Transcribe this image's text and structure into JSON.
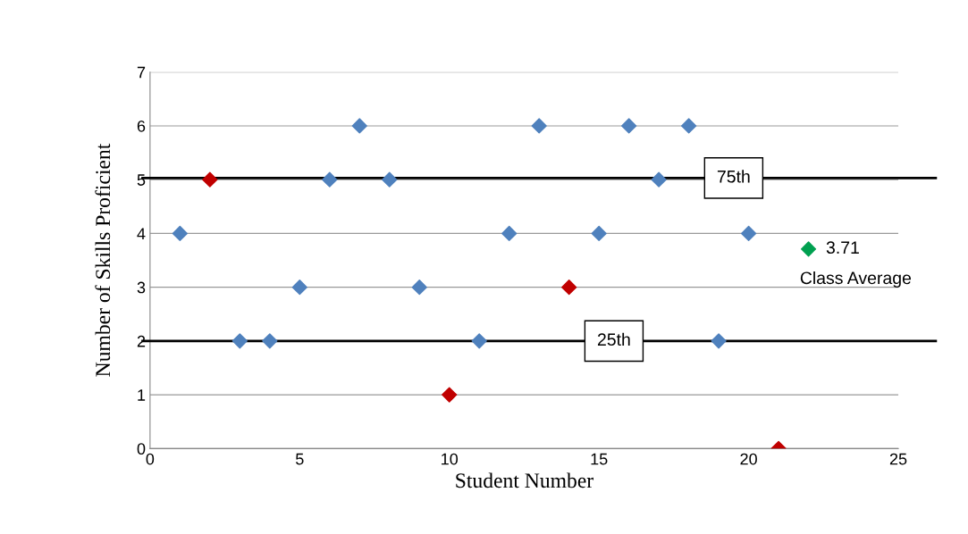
{
  "chart_data": {
    "type": "scatter",
    "xlabel": "Student Number",
    "ylabel": "Number of Skills Proficient",
    "xlim": [
      0,
      25
    ],
    "xticks": [
      0,
      5,
      10,
      15,
      20,
      25
    ],
    "ylim": [
      0,
      7
    ],
    "yticks": [
      0,
      1,
      2,
      3,
      4,
      5,
      6,
      7
    ],
    "grid": "y",
    "marker": "diamond",
    "series": [
      {
        "color": "#4f81bd",
        "x": [
          1,
          3,
          4,
          5,
          6,
          7,
          8,
          9,
          11,
          12,
          13,
          15,
          16,
          17,
          18,
          19,
          20
        ],
        "values": [
          4,
          2,
          2,
          3,
          5,
          6,
          5,
          3,
          2,
          4,
          6,
          4,
          6,
          5,
          6,
          2,
          4
        ]
      },
      {
        "color": "#c00000",
        "x": [
          2,
          10,
          14,
          21
        ],
        "values": [
          5,
          1,
          3,
          0
        ]
      },
      {
        "color": "#00a050",
        "x": [
          22
        ],
        "values": [
          3.71
        ],
        "value_labels": [
          "3.71"
        ]
      }
    ],
    "ref_lines": [
      {
        "axis": "y",
        "value": 5.03,
        "label": "75th",
        "color": "#000000",
        "line_style": "solid"
      },
      {
        "axis": "y",
        "value": 2,
        "label": "25th",
        "color": "#000000",
        "line_style": "solid"
      }
    ],
    "annotations": [
      {
        "text": "Class Average",
        "x": 22,
        "y": 3.71
      }
    ]
  }
}
